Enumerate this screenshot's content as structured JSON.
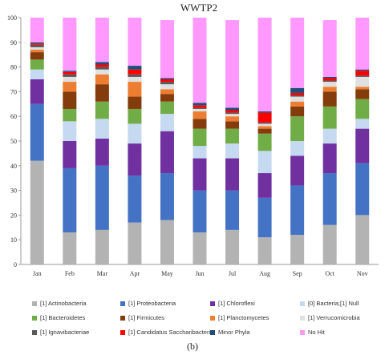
{
  "chart_data": {
    "type": "bar",
    "stacked": true,
    "title": "WWTP2",
    "categories": [
      "Jan",
      "Feb",
      "Mar",
      "Apr",
      "May",
      "Jun",
      "Jul",
      "Aug",
      "Sep",
      "Oct",
      "Nov"
    ],
    "ylim": [
      0,
      100
    ],
    "yticks": [
      0,
      10,
      20,
      30,
      40,
      50,
      60,
      70,
      80,
      90,
      100
    ],
    "grid": false,
    "legend_position": "bottom",
    "series": [
      {
        "name": "[1] Actinobacteria",
        "color": "#b3b3b3",
        "values": [
          42,
          13,
          14,
          17,
          18,
          13,
          14,
          11,
          12,
          16,
          20
        ]
      },
      {
        "name": "[1] Proteobacteria",
        "color": "#4472c4",
        "values": [
          23,
          26,
          26,
          19,
          19,
          17,
          16,
          16,
          20,
          21,
          21
        ]
      },
      {
        "name": "[1] Chloroflexi",
        "color": "#7030a0",
        "values": [
          10,
          11,
          11,
          13,
          17,
          13,
          13,
          10,
          12,
          12,
          14
        ]
      },
      {
        "name": "[0] Bacteria;[1] Null",
        "color": "#c5d9f1",
        "values": [
          4,
          8,
          8,
          8,
          7,
          5,
          6,
          9,
          6,
          6,
          4
        ]
      },
      {
        "name": "[1] Bacteroidetes",
        "color": "#70ad47",
        "values": [
          4,
          5,
          7,
          6,
          5,
          7,
          6,
          7,
          10,
          9,
          8
        ]
      },
      {
        "name": "[1] Firmicutes",
        "color": "#843c0c",
        "values": [
          3,
          7,
          7,
          5,
          3,
          4,
          3,
          2,
          4,
          6,
          4
        ]
      },
      {
        "name": "[1] Planctomycetes",
        "color": "#ed7d31",
        "values": [
          1,
          4,
          4,
          6,
          2,
          3,
          2,
          1,
          2,
          2,
          1
        ]
      },
      {
        "name": "[1] Verrucomicrobia",
        "color": "#e0e0e0",
        "values": [
          1,
          2,
          2,
          2,
          2,
          1,
          1,
          1,
          2,
          2,
          4
        ]
      },
      {
        "name": "[1] Ignavibacteriae",
        "color": "#595959",
        "values": [
          1,
          1,
          1,
          1,
          1,
          0.5,
          0.5,
          0.5,
          0.5,
          0.5,
          0.5
        ]
      },
      {
        "name": "[1] Candidatus Saccharibacteria",
        "color": "#ff0000",
        "values": [
          0.5,
          1,
          1,
          2,
          1,
          1,
          1,
          4,
          1,
          1,
          2
        ]
      },
      {
        "name": "Minor Phyla",
        "color": "#1f4e79",
        "values": [
          0.5,
          0.5,
          1,
          1.5,
          0.5,
          1,
          1,
          0.5,
          2,
          0.5,
          0.5
        ]
      },
      {
        "name": "No Hit",
        "color": "#ff99ff",
        "values": [
          10,
          21.5,
          18,
          19.5,
          23.5,
          34.5,
          35.5,
          38,
          28.5,
          23,
          21
        ]
      }
    ]
  },
  "caption": "(b)"
}
